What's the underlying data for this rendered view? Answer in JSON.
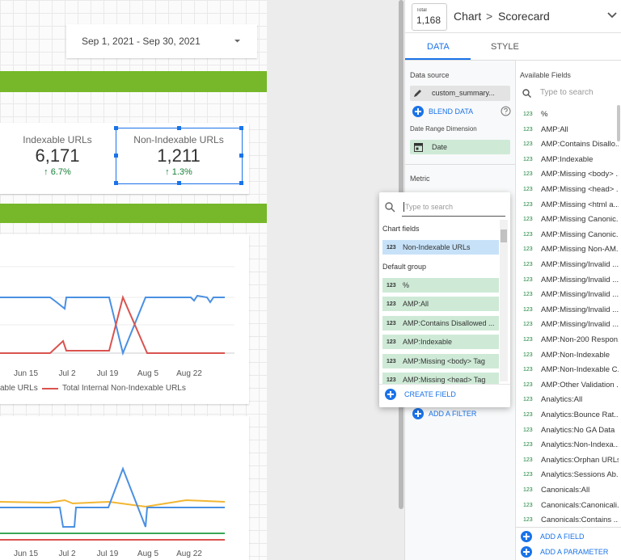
{
  "report": {
    "date_range": "Sep 1, 2021 - Sep 30, 2021",
    "scorecards": [
      {
        "label": "Indexable URLs",
        "value": "6,171",
        "change": "↑ 6.7%"
      },
      {
        "label": "Non-Indexable URLs",
        "value": "1,211",
        "change": "↑ 1.3%"
      }
    ],
    "chart1": {
      "x_labels": [
        "Jun 15",
        "Jul 2",
        "Jul 19",
        "Aug 5",
        "Aug 22"
      ],
      "legend": [
        "able URLs",
        "Total Internal Non-Indexable URLs"
      ]
    },
    "chart2": {
      "x_labels": [
        "Jun 15",
        "Jul 2",
        "Jul 19",
        "Aug 5",
        "Aug 22"
      ]
    }
  },
  "panel": {
    "header": {
      "total_label": "Total",
      "total_value": "1,168",
      "chart": "Chart",
      "separator": ">",
      "type": "Scorecard"
    },
    "tabs": [
      "DATA",
      "STYLE"
    ],
    "data_source_label": "Data source",
    "data_source": "custom_summary...",
    "blend_data": "BLEND DATA",
    "date_range_dimension_label": "Date Range Dimension",
    "date_range_dimension": "Date",
    "metric_label": "Metric",
    "add_filter": "ADD A FILTER",
    "available_fields_label": "Available Fields",
    "search_placeholder": "Type to search",
    "field_type_icon": "123",
    "fields": [
      "%",
      "AMP:All",
      "AMP:Contains Disallo...",
      "AMP:Indexable",
      "AMP:Missing <body> ...",
      "AMP:Missing <head> ...",
      "AMP:Missing <html a...",
      "AMP:Missing Canonic...",
      "AMP:Missing Canonic...",
      "AMP:Missing Non-AM...",
      "AMP:Missing/Invalid ...",
      "AMP:Missing/Invalid ...",
      "AMP:Missing/Invalid ...",
      "AMP:Missing/Invalid ...",
      "AMP:Missing/Invalid ...",
      "AMP:Non-200 Respon...",
      "AMP:Non-Indexable",
      "AMP:Non-Indexable C...",
      "AMP:Other Validation ...",
      "Analytics:All",
      "Analytics:Bounce Rat...",
      "Analytics:No GA Data",
      "Analytics:Non-Indexa...",
      "Analytics:Orphan URLs",
      "Analytics:Sessions Ab...",
      "Canonicals:All",
      "Canonicals:Canonicali...",
      "Canonicals:Contains ..."
    ],
    "add_field": "ADD A FIELD",
    "add_parameter": "ADD A PARAMETER"
  },
  "dropdown": {
    "search_placeholder": "Type to search",
    "chart_fields_label": "Chart fields",
    "chart_fields": [
      "Non-Indexable URLs"
    ],
    "default_group_label": "Default group",
    "default_group": [
      "%",
      "AMP:All",
      "AMP:Contains Disallowed ...",
      "AMP:Indexable",
      "AMP:Missing <body> Tag",
      "AMP:Missing <head> Tag"
    ],
    "create_field": "CREATE FIELD"
  }
}
